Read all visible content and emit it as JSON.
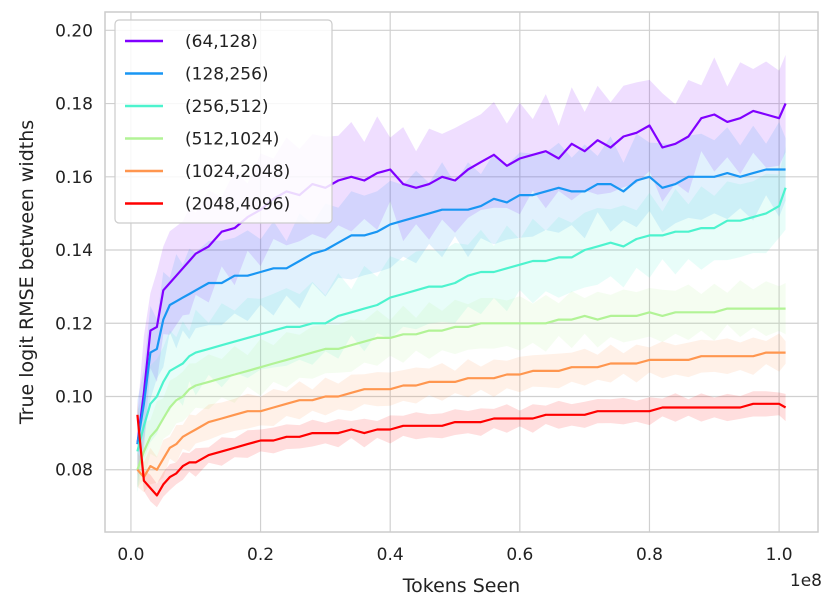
{
  "chart_data": {
    "type": "line",
    "title": "",
    "xlabel": "Tokens Seen",
    "ylabel": "True logit RMSE between widths",
    "x_offset_label": "1e8",
    "xlim": [
      -0.04,
      1.06
    ],
    "ylim": [
      0.063,
      0.205
    ],
    "x_ticks": [
      0.0,
      0.2,
      0.4,
      0.6,
      0.8,
      1.0
    ],
    "x_tick_labels": [
      "0.0",
      "0.2",
      "0.4",
      "0.6",
      "0.8",
      "1.0"
    ],
    "y_ticks": [
      0.08,
      0.1,
      0.12,
      0.14,
      0.16,
      0.18,
      0.2
    ],
    "y_tick_labels": [
      "0.08",
      "0.10",
      "0.12",
      "0.14",
      "0.16",
      "0.18",
      "0.20"
    ],
    "grid": true,
    "legend_position": "top-left",
    "x": [
      0.01,
      0.02,
      0.03,
      0.04,
      0.05,
      0.06,
      0.07,
      0.08,
      0.09,
      0.1,
      0.12,
      0.14,
      0.16,
      0.18,
      0.2,
      0.22,
      0.24,
      0.26,
      0.28,
      0.3,
      0.32,
      0.34,
      0.36,
      0.38,
      0.4,
      0.42,
      0.44,
      0.46,
      0.48,
      0.5,
      0.52,
      0.54,
      0.56,
      0.58,
      0.6,
      0.62,
      0.64,
      0.66,
      0.68,
      0.7,
      0.72,
      0.74,
      0.76,
      0.78,
      0.8,
      0.82,
      0.84,
      0.86,
      0.88,
      0.9,
      0.92,
      0.94,
      0.96,
      0.98,
      1.0,
      1.01
    ],
    "series": [
      {
        "name": "(64,128)",
        "color": "#8000ff",
        "values": [
          0.087,
          0.101,
          0.118,
          0.119,
          0.129,
          0.131,
          0.133,
          0.135,
          0.137,
          0.139,
          0.141,
          0.145,
          0.146,
          0.149,
          0.151,
          0.154,
          0.156,
          0.155,
          0.158,
          0.157,
          0.159,
          0.16,
          0.159,
          0.161,
          0.162,
          0.158,
          0.157,
          0.158,
          0.16,
          0.159,
          0.162,
          0.164,
          0.166,
          0.163,
          0.165,
          0.166,
          0.167,
          0.165,
          0.169,
          0.167,
          0.17,
          0.168,
          0.171,
          0.172,
          0.174,
          0.168,
          0.169,
          0.171,
          0.176,
          0.177,
          0.175,
          0.176,
          0.178,
          0.177,
          0.176,
          0.18
        ],
        "band": 0.012
      },
      {
        "name": "(128,256)",
        "color": "#1996f3",
        "values": [
          0.087,
          0.098,
          0.112,
          0.113,
          0.121,
          0.125,
          0.126,
          0.127,
          0.128,
          0.129,
          0.131,
          0.131,
          0.133,
          0.133,
          0.134,
          0.135,
          0.135,
          0.137,
          0.139,
          0.14,
          0.142,
          0.144,
          0.144,
          0.145,
          0.147,
          0.148,
          0.149,
          0.15,
          0.151,
          0.151,
          0.151,
          0.152,
          0.154,
          0.153,
          0.155,
          0.155,
          0.156,
          0.157,
          0.156,
          0.156,
          0.158,
          0.158,
          0.156,
          0.159,
          0.16,
          0.157,
          0.158,
          0.16,
          0.16,
          0.16,
          0.161,
          0.16,
          0.161,
          0.162,
          0.162,
          0.162
        ],
        "band": 0.01
      },
      {
        "name": "(256,512)",
        "color": "#4df3ce",
        "values": [
          0.085,
          0.092,
          0.098,
          0.1,
          0.104,
          0.107,
          0.108,
          0.109,
          0.111,
          0.112,
          0.113,
          0.114,
          0.115,
          0.116,
          0.117,
          0.118,
          0.119,
          0.119,
          0.12,
          0.12,
          0.122,
          0.123,
          0.124,
          0.125,
          0.127,
          0.128,
          0.129,
          0.13,
          0.13,
          0.131,
          0.133,
          0.134,
          0.134,
          0.135,
          0.136,
          0.137,
          0.137,
          0.138,
          0.138,
          0.14,
          0.141,
          0.142,
          0.141,
          0.143,
          0.144,
          0.144,
          0.145,
          0.145,
          0.146,
          0.146,
          0.148,
          0.148,
          0.149,
          0.15,
          0.152,
          0.157
        ],
        "band": 0.009
      },
      {
        "name": "(512,1024)",
        "color": "#b2f396",
        "values": [
          0.08,
          0.085,
          0.089,
          0.091,
          0.094,
          0.097,
          0.099,
          0.1,
          0.102,
          0.103,
          0.104,
          0.105,
          0.106,
          0.107,
          0.108,
          0.109,
          0.11,
          0.111,
          0.112,
          0.113,
          0.113,
          0.114,
          0.115,
          0.116,
          0.116,
          0.117,
          0.117,
          0.118,
          0.118,
          0.119,
          0.119,
          0.12,
          0.12,
          0.12,
          0.12,
          0.12,
          0.12,
          0.121,
          0.121,
          0.122,
          0.121,
          0.122,
          0.122,
          0.122,
          0.123,
          0.122,
          0.123,
          0.123,
          0.123,
          0.123,
          0.124,
          0.124,
          0.124,
          0.124,
          0.124,
          0.124
        ],
        "band": 0.006
      },
      {
        "name": "(1024,2048)",
        "color": "#ff964f",
        "values": [
          0.08,
          0.078,
          0.081,
          0.08,
          0.083,
          0.086,
          0.087,
          0.089,
          0.09,
          0.091,
          0.093,
          0.094,
          0.095,
          0.096,
          0.096,
          0.097,
          0.098,
          0.099,
          0.099,
          0.1,
          0.1,
          0.101,
          0.102,
          0.102,
          0.102,
          0.103,
          0.103,
          0.104,
          0.104,
          0.104,
          0.105,
          0.105,
          0.105,
          0.106,
          0.106,
          0.107,
          0.107,
          0.107,
          0.108,
          0.108,
          0.108,
          0.109,
          0.109,
          0.109,
          0.11,
          0.11,
          0.11,
          0.11,
          0.111,
          0.111,
          0.111,
          0.111,
          0.111,
          0.112,
          0.112,
          0.112
        ],
        "band": 0.004
      },
      {
        "name": "(2048,4096)",
        "color": "#ff0000",
        "values": [
          0.095,
          0.077,
          0.075,
          0.073,
          0.076,
          0.078,
          0.079,
          0.081,
          0.082,
          0.082,
          0.084,
          0.085,
          0.086,
          0.087,
          0.088,
          0.088,
          0.089,
          0.089,
          0.09,
          0.09,
          0.09,
          0.091,
          0.09,
          0.091,
          0.091,
          0.092,
          0.092,
          0.092,
          0.092,
          0.093,
          0.093,
          0.093,
          0.094,
          0.094,
          0.094,
          0.094,
          0.095,
          0.095,
          0.095,
          0.095,
          0.096,
          0.096,
          0.096,
          0.096,
          0.096,
          0.097,
          0.097,
          0.097,
          0.097,
          0.097,
          0.097,
          0.097,
          0.098,
          0.098,
          0.098,
          0.097
        ],
        "band": 0.003
      }
    ]
  }
}
